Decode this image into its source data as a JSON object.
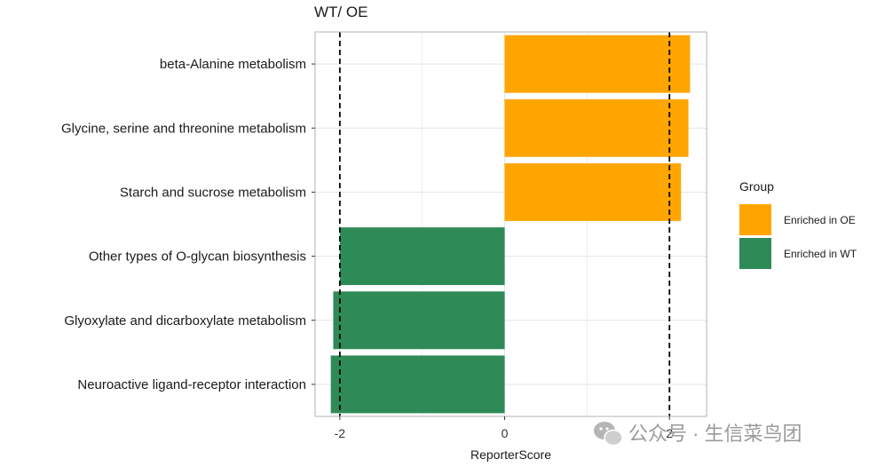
{
  "chart_data": {
    "type": "bar",
    "orientation": "horizontal",
    "title": "WT/ OE",
    "xlabel": "ReporterScore",
    "ylabel": "",
    "xlim": [
      -2.3,
      2.45
    ],
    "xticks": [
      -2,
      0,
      2
    ],
    "xtick_labels": [
      "-2",
      "0",
      "2"
    ],
    "threshold_lines": [
      -2,
      2
    ],
    "grid": true,
    "categories": [
      "beta-Alanine metabolism",
      "Glycine, serine and threonine metabolism",
      "Starch and sucrose metabolism",
      "Other types of O-glycan biosynthesis",
      "Glyoxylate and dicarboxylate metabolism",
      "Neuroactive ligand-receptor interaction"
    ],
    "values": [
      2.25,
      2.23,
      2.14,
      -2.0,
      -2.08,
      -2.11
    ],
    "groups": [
      "Enriched in OE",
      "Enriched in OE",
      "Enriched in OE",
      "Enriched in WT",
      "Enriched in WT",
      "Enriched in WT"
    ],
    "legend": {
      "title": "Group",
      "position": "right",
      "entries": [
        {
          "label": "Enriched in OE",
          "color": "#FFA500"
        },
        {
          "label": "Enriched in WT",
          "color": "#2E8B57"
        }
      ]
    }
  },
  "colors": {
    "oe": "#FFA500",
    "wt": "#2E8B57",
    "grid": "#e3e3e3",
    "panel_border": "#b3b3b3"
  },
  "watermark": {
    "text": "公众号 · 生信菜鸟团",
    "icon": "wechat-icon"
  }
}
